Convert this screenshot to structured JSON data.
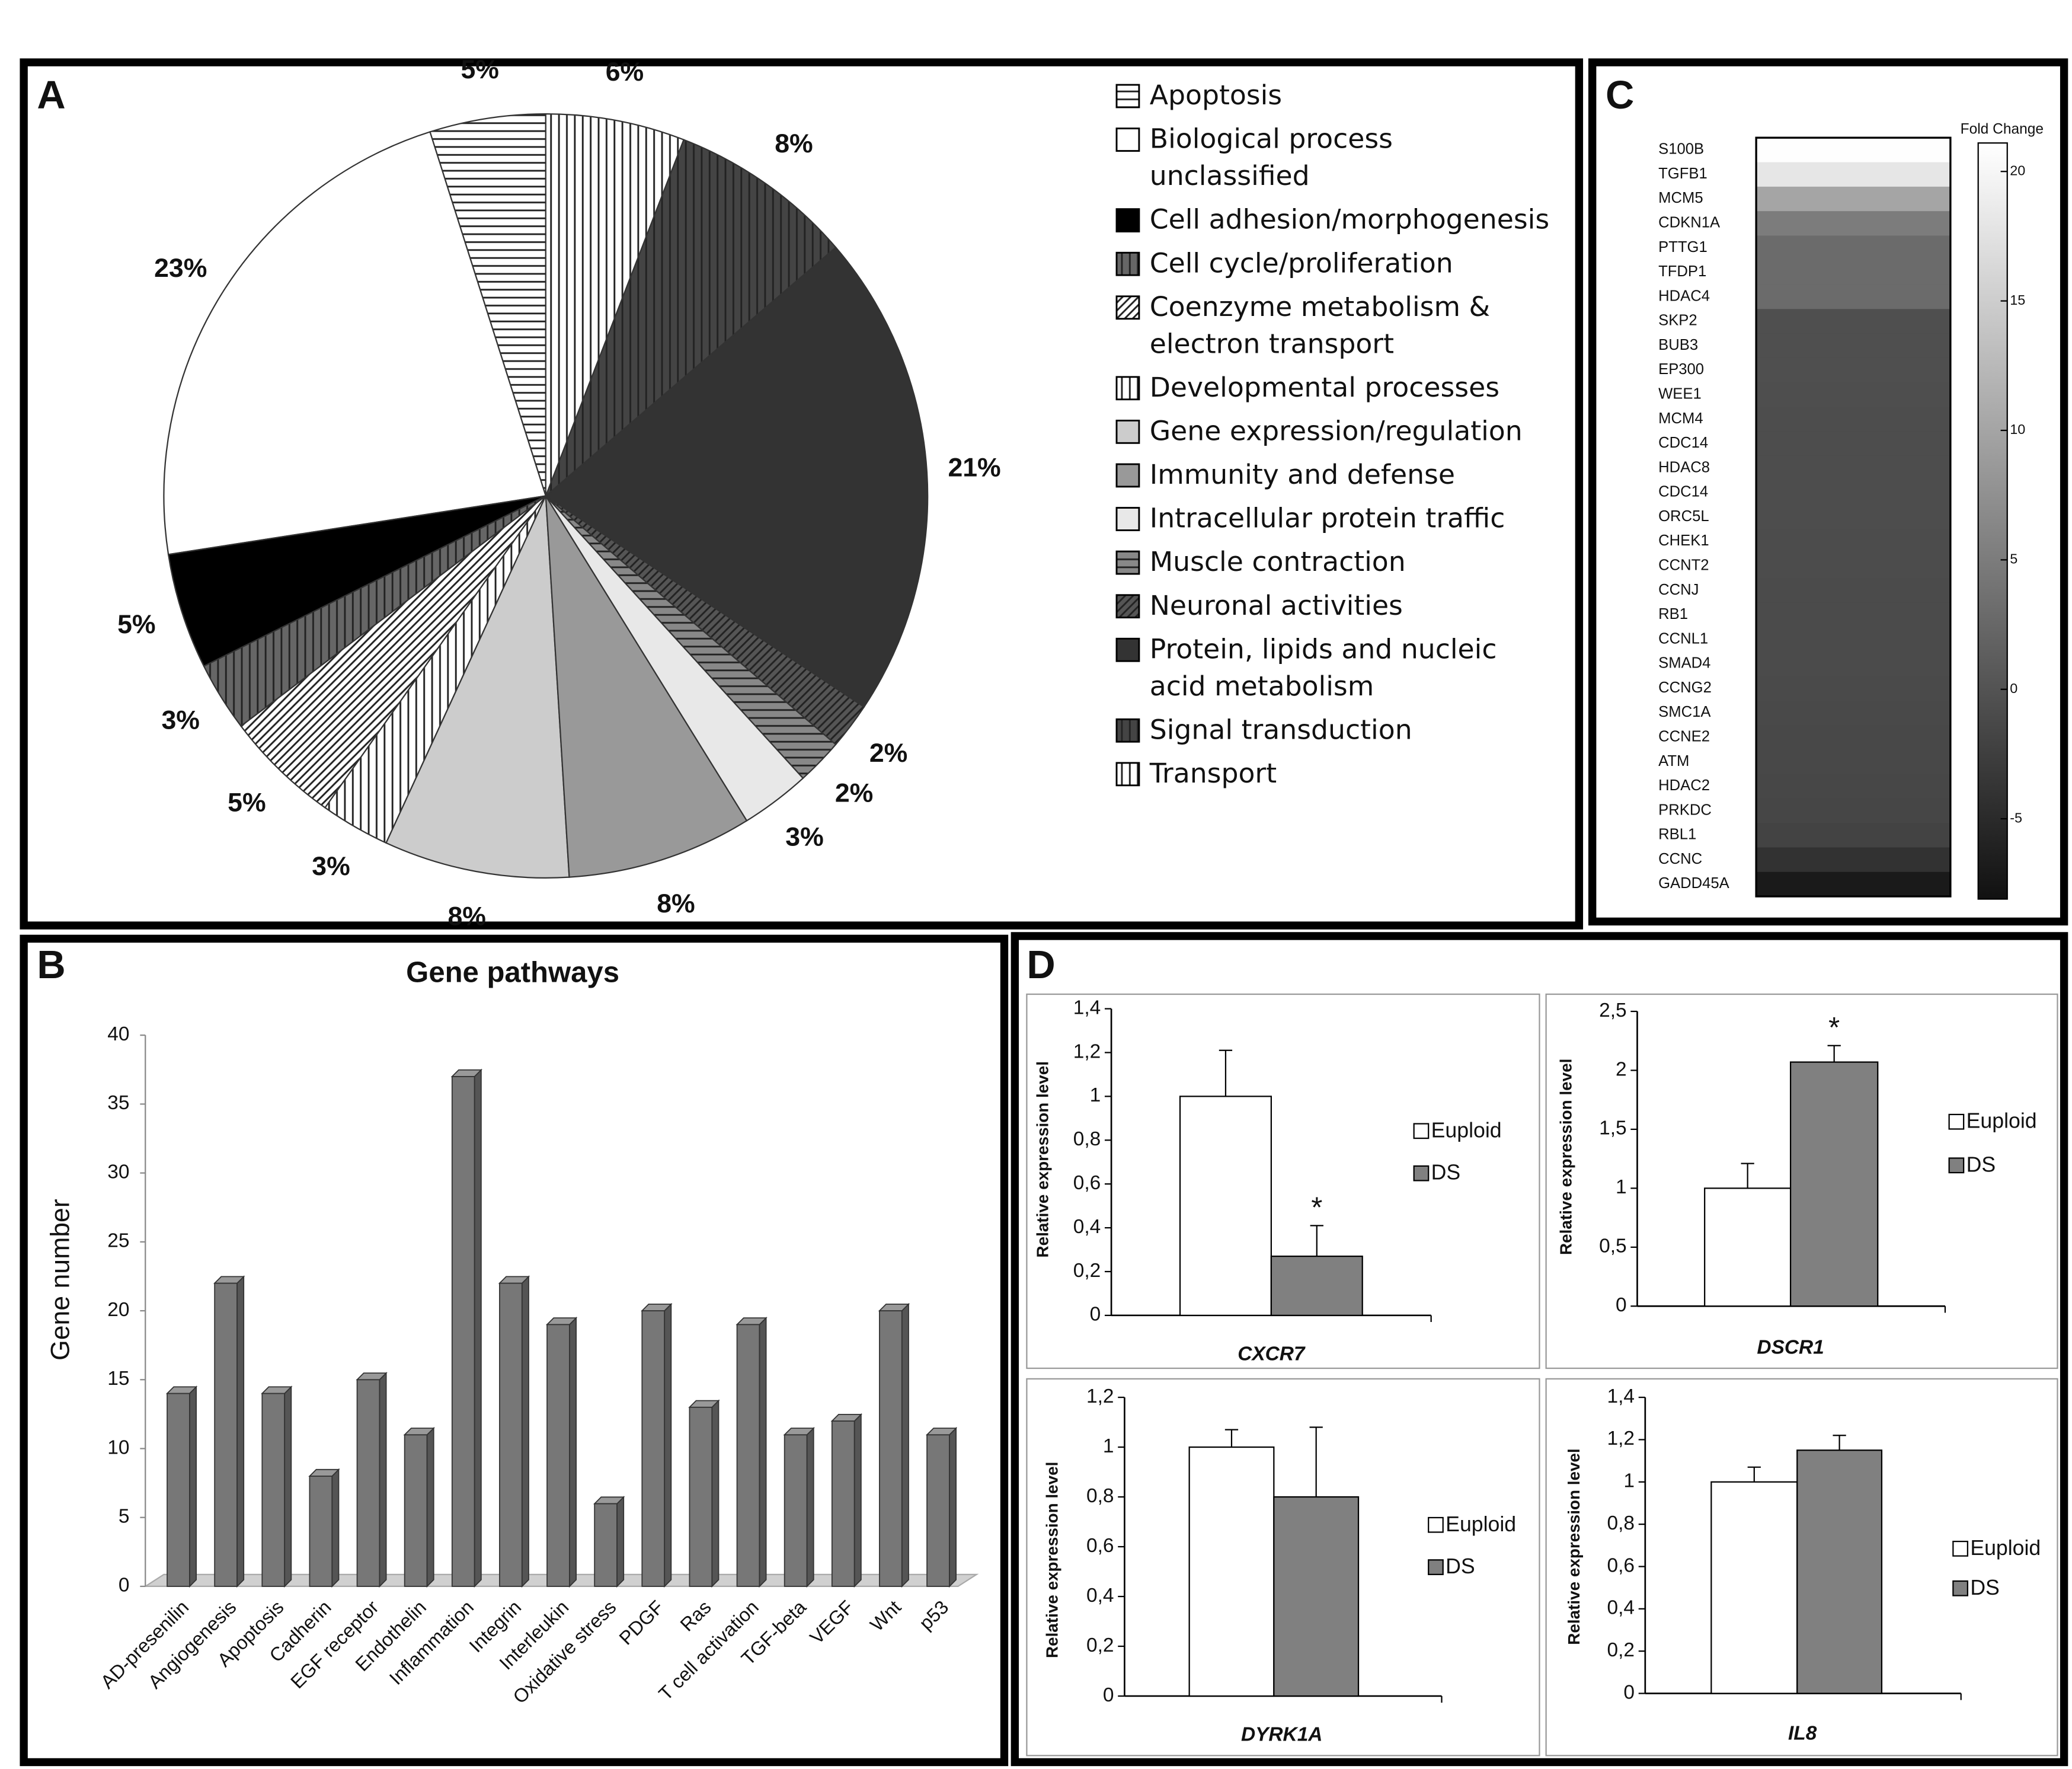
{
  "chart_data": [
    {
      "type": "pie",
      "panel": "A",
      "categories": [
        "Apoptosis",
        "Biological process unclassified",
        "Cell adhesion/morphogenesis",
        "Cell cycle/proliferation",
        "Coenzyme metabolism & electron transport",
        "Developmental processes",
        "Gene expression/regulation",
        "Immunity and defense",
        "Intracellular protein traffic",
        "Muscle contraction",
        "Neuronal activities",
        "Protein, lipids and nucleic acid metabolism",
        "Signal transduction",
        "Transport"
      ],
      "values": [
        5,
        23,
        5,
        3,
        5,
        3,
        8,
        8,
        3,
        2,
        2,
        21,
        8,
        6
      ],
      "value_labels": [
        "5%",
        "23%",
        "5%",
        "3%",
        "5%",
        "3%",
        "8%",
        "8%",
        "3%",
        "2%",
        "2%",
        "21%",
        "8%",
        "6%"
      ],
      "colors": [
        "#ffffff",
        "#ffffff",
        "#000000",
        "#666666",
        "#ffffff",
        "#ffffff",
        "#cccccc",
        "#999999",
        "#e8e8e8",
        "#888888",
        "#555555",
        "#333333",
        "#444444",
        "#ffffff"
      ],
      "patterns": [
        "horizontal",
        "none",
        "none",
        "vertical",
        "diagonal",
        "vertical",
        "none",
        "none",
        "none",
        "horizontal",
        "diagonal",
        "none",
        "vertical",
        "vertical"
      ]
    },
    {
      "type": "bar",
      "panel": "B",
      "title": "Gene pathways",
      "ylabel": "Gene number",
      "categories": [
        "AD-presenilin",
        "Angiogenesis",
        "Apoptosis",
        "Cadherin",
        "EGF receptor",
        "Endothelin",
        "Inflammation",
        "Integrin",
        "Interleukin",
        "Oxidative stress",
        "PDGF",
        "Ras",
        "T cell activation",
        "TGF-beta",
        "VEGF",
        "Wnt",
        "p53"
      ],
      "values": [
        14,
        22,
        14,
        8,
        15,
        11,
        37,
        22,
        19,
        6,
        20,
        13,
        19,
        11,
        12,
        20,
        11
      ],
      "color": "#777777",
      "ylim": [
        0,
        40
      ],
      "yticks": [
        0,
        5,
        10,
        15,
        20,
        25,
        30,
        35,
        40
      ]
    },
    {
      "type": "heatmap",
      "panel": "C",
      "colorbar_title": "Fold Change",
      "categories": [
        "S100B",
        "TGFB1",
        "MCM5",
        "CDKN1A",
        "PTTG1",
        "TFDP1",
        "HDAC4",
        "SKP2",
        "BUB3",
        "EP300",
        "WEE1",
        "MCM4",
        "CDC14",
        "HDAC8",
        "CDC14",
        "ORC5L",
        "CHEK1",
        "CCNT2",
        "CCNJ",
        "RB1",
        "CCNL1",
        "SMAD4",
        "CCNG2",
        "SMC1A",
        "CCNE2",
        "ATM",
        "HDAC2",
        "PRKDC",
        "RBL1",
        "CCNC",
        "GADD45A"
      ],
      "values": [
        21,
        18,
        10,
        5,
        3,
        3,
        3,
        -0.5,
        -0.5,
        -0.5,
        -0.6,
        -0.7,
        -0.7,
        -0.8,
        -0.8,
        -0.8,
        -0.9,
        -0.9,
        -1,
        -1,
        -1,
        -1,
        -1.1,
        -1.2,
        -1.3,
        -1.4,
        -1.5,
        -1.6,
        -2,
        -4,
        -7
      ],
      "clim": [
        -8.1,
        21.1
      ],
      "cticks": [
        -5,
        0,
        5,
        10,
        15,
        20
      ]
    },
    {
      "type": "bar",
      "panel": "D",
      "xlabel": "CXCR7",
      "ylabel": "Relative expression level",
      "series": [
        {
          "name": "Euploid",
          "color": "#ffffff",
          "values": [
            1
          ],
          "errors": [
            0.21
          ]
        },
        {
          "name": "DS",
          "color": "#808080",
          "values": [
            0.27
          ],
          "errors": [
            0.14
          ],
          "annotation": "*"
        }
      ],
      "ylim": [
        0,
        1.4
      ],
      "yticks": [
        0,
        {
          "value": 0.2,
          "label": "0,2"
        },
        {
          "value": 0.4,
          "label": "0,4"
        },
        {
          "value": 0.6,
          "label": "0,6"
        },
        {
          "value": 0.8,
          "label": "0,8"
        },
        1,
        {
          "value": 1.2,
          "label": "1,2"
        },
        {
          "value": 1.4,
          "label": "1,4"
        }
      ]
    },
    {
      "type": "bar",
      "xlabel": "DSCR1",
      "ylabel": "Relative expression level",
      "series": [
        {
          "name": "Euploid",
          "color": "#ffffff",
          "values": [
            1
          ],
          "errors": [
            0.21
          ]
        },
        {
          "name": "DS",
          "color": "#808080",
          "values": [
            2.07
          ],
          "errors": [
            0.14
          ],
          "annotation": "*"
        }
      ],
      "ylim": [
        0,
        2.5
      ],
      "yticks": [
        0,
        {
          "value": 0.5,
          "label": "0,5"
        },
        1,
        {
          "value": 1.5,
          "label": "1,5"
        },
        2,
        {
          "value": 2.5,
          "label": "2,5"
        }
      ]
    },
    {
      "type": "bar",
      "xlabel": "DYRK1A",
      "ylabel": "Relative expression level",
      "series": [
        {
          "name": "Euploid",
          "color": "#ffffff",
          "values": [
            1
          ],
          "errors": [
            0.07
          ]
        },
        {
          "name": "DS",
          "color": "#808080",
          "values": [
            0.8
          ],
          "errors": [
            0.28
          ]
        }
      ],
      "ylim": [
        0,
        1.2
      ],
      "yticks": [
        0,
        {
          "value": 0.2,
          "label": "0,2"
        },
        {
          "value": 0.4,
          "label": "0,4"
        },
        {
          "value": 0.6,
          "label": "0,6"
        },
        {
          "value": 0.8,
          "label": "0,8"
        },
        1,
        {
          "value": 1.2,
          "label": "1,2"
        }
      ]
    },
    {
      "type": "bar",
      "xlabel": "IL8",
      "ylabel": "Relative expression level",
      "series": [
        {
          "name": "Euploid",
          "color": "#ffffff",
          "values": [
            1
          ],
          "errors": [
            0.07
          ]
        },
        {
          "name": "DS",
          "color": "#808080",
          "values": [
            1.15
          ],
          "errors": [
            0.07
          ]
        }
      ],
      "ylim": [
        0,
        1.4
      ],
      "yticks": [
        0,
        {
          "value": 0.2,
          "label": "0,2"
        },
        {
          "value": 0.4,
          "label": "0,4"
        },
        {
          "value": 0.6,
          "label": "0,6"
        },
        {
          "value": 0.8,
          "label": "0,8"
        },
        1,
        {
          "value": 1.2,
          "label": "1,2"
        },
        {
          "value": 1.4,
          "label": "1,4"
        }
      ]
    }
  ]
}
